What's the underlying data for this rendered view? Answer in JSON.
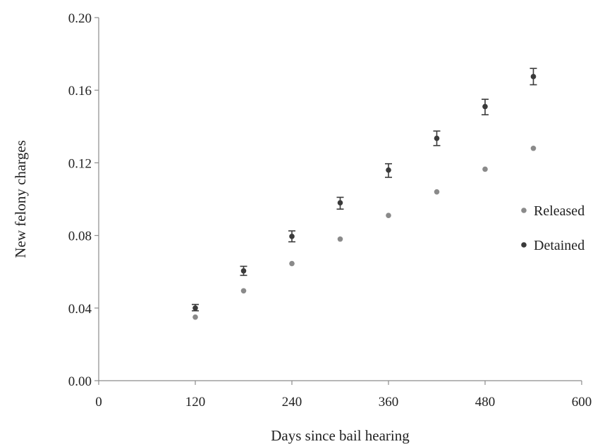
{
  "chart_data": {
    "type": "scatter",
    "title": "",
    "xlabel": "Days since bail hearing",
    "ylabel": "New felony charges",
    "xlim": [
      0,
      600
    ],
    "ylim": [
      0,
      0.2
    ],
    "x_ticks": [
      0,
      120,
      240,
      360,
      480,
      600
    ],
    "x_tick_labels": [
      "0",
      "120",
      "240",
      "360",
      "480",
      "600"
    ],
    "y_ticks": [
      0,
      0.04,
      0.08,
      0.12,
      0.16,
      0.2
    ],
    "y_tick_labels": [
      "0.00",
      "0.04",
      "0.08",
      "0.12",
      "0.16",
      "0.20"
    ],
    "grid": false,
    "legend_position": "right",
    "x": [
      120,
      180,
      240,
      300,
      360,
      420,
      480,
      540
    ],
    "series": [
      {
        "name": "Released",
        "color": "#8a8a8a",
        "values": [
          0.035,
          0.0495,
          0.0645,
          0.078,
          0.091,
          0.104,
          0.1165,
          0.128
        ]
      },
      {
        "name": "Detained",
        "color": "#3a3a3a",
        "values": [
          0.04,
          0.0605,
          0.0795,
          0.098,
          0.116,
          0.1335,
          0.151,
          0.1675
        ],
        "error_bars": true,
        "error_low": [
          0.0385,
          0.058,
          0.0765,
          0.0945,
          0.112,
          0.1295,
          0.1465,
          0.163
        ],
        "error_high": [
          0.042,
          0.063,
          0.0825,
          0.101,
          0.1195,
          0.1375,
          0.155,
          0.172
        ]
      }
    ]
  }
}
